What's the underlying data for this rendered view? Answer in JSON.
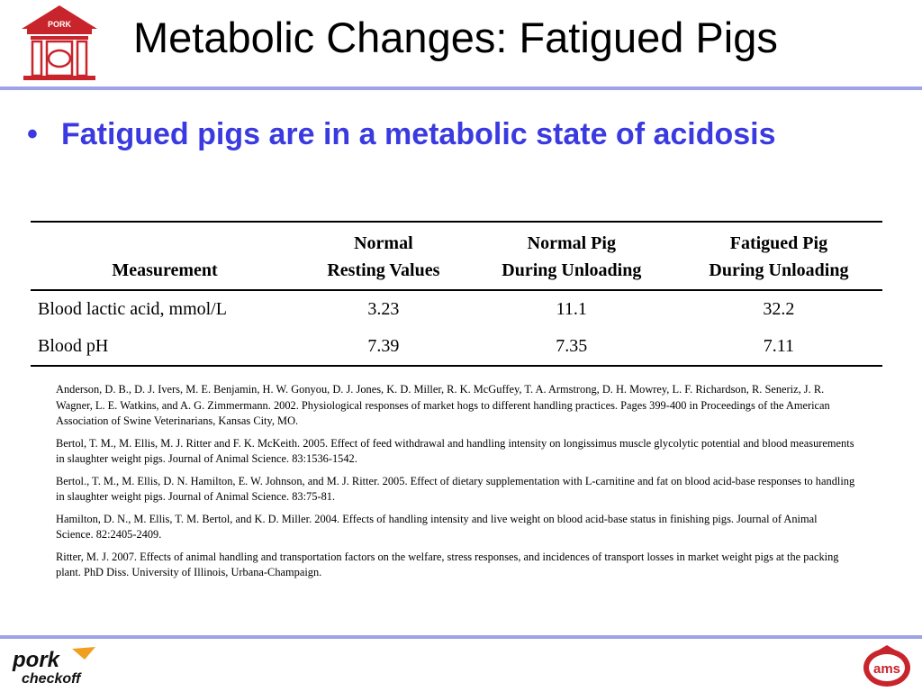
{
  "header": {
    "title": "Metabolic Changes: Fatigued Pigs",
    "logo_text": "PORK"
  },
  "bullet": {
    "symbol": "•",
    "text": "Fatigued pigs are in a metabolic state of acidosis"
  },
  "table": {
    "headers": [
      {
        "line1": "",
        "line2": "Measurement"
      },
      {
        "line1": "Normal",
        "line2": "Resting Values"
      },
      {
        "line1": "Normal Pig",
        "line2": "During Unloading"
      },
      {
        "line1": "Fatigued Pig",
        "line2": "During Unloading"
      }
    ],
    "rows": [
      [
        "Blood lactic acid, mmol/L",
        "3.23",
        "11.1",
        "32.2"
      ],
      [
        "Blood pH",
        "7.39",
        "7.35",
        "7.11"
      ]
    ]
  },
  "references": [
    "Anderson, D. B., D. J. Ivers, M. E. Benjamin, H. W. Gonyou, D. J. Jones, K. D. Miller, R. K. McGuffey, T. A. Armstrong, D. H. Mowrey, L. F. Richardson, R. Seneriz, J. R. Wagner, L. E. Watkins, and A. G. Zimmermann.  2002.  Physiological responses of market hogs to different handling practices.  Pages 399-400 in Proceedings of the American Association of Swine Veterinarians, Kansas City, MO.",
    "Bertol, T. M., M. Ellis, M. J. Ritter and F. K. McKeith.  2005.  Effect of feed withdrawal and handling intensity on longissimus muscle glycolytic potential and blood measurements in slaughter weight pigs.  Journal of Animal Science.  83:1536-1542.",
    "Bertol., T. M., M. Ellis, D. N. Hamilton, E. W. Johnson, and M. J. Ritter.  2005.  Effect of dietary supplementation with L-carnitine and fat on blood acid-base responses to handling in slaughter weight pigs.  Journal of Animal Science.  83:75-81.",
    "Hamilton, D. N., M. Ellis, T. M. Bertol, and K. D. Miller.  2004.  Effects of handling intensity and live weight on blood acid-base status in finishing pigs.  Journal of Animal Science.  82:2405-2409.",
    "Ritter, M. J.  2007.  Effects of animal handling and transportation factors on the welfare, stress responses, and incidences of transport losses in market weight pigs at the packing plant.  PhD Diss.  University of Illinois, Urbana-Champaign."
  ],
  "footer": {
    "left_logo": {
      "line1": "pork",
      "line2": "checkoff"
    },
    "right_logo_text": "ams"
  },
  "colors": {
    "accent_blue": "#3a3ae0",
    "rule": "#9da3e6",
    "logo_red": "#c8242b"
  },
  "icons": {
    "top_logo": "pork-building-logo-icon",
    "bottom_left": "pork-checkoff-logo-icon",
    "bottom_right": "ams-logo-icon"
  }
}
